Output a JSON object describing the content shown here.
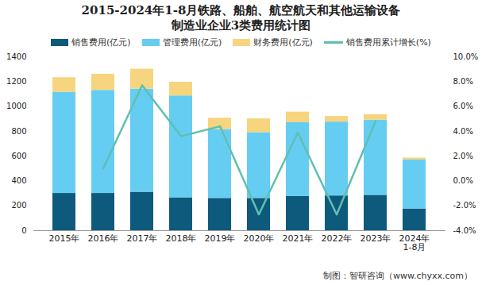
{
  "chart_data": {
    "type": "bar",
    "title": "2015-2024年1-8月铁路、船舶、航空航天和其他运输设备\n制造业企业3类费用统计图",
    "source": "制图：智研咨询（www.chyxx.com）",
    "categories": [
      "2015年",
      "2016年",
      "2017年",
      "2018年",
      "2019年",
      "2020年",
      "2021年",
      "2022年",
      "2023年",
      "2024年\n1-8月"
    ],
    "series": [
      {
        "name": "销售费用(亿元)",
        "color": "#0e5a7c",
        "type": "bar",
        "values": [
          300,
          300,
          310,
          265,
          260,
          260,
          275,
          280,
          285,
          175
        ]
      },
      {
        "name": "管理费用(亿元)",
        "color": "#66cdf2",
        "type": "bar",
        "values": [
          815,
          830,
          830,
          820,
          555,
          530,
          595,
          595,
          605,
          395
        ]
      },
      {
        "name": "财务费用(亿元)",
        "color": "#f7d47e",
        "type": "bar",
        "values": [
          117,
          130,
          160,
          110,
          90,
          110,
          85,
          45,
          45,
          15
        ]
      },
      {
        "name": "销售费用累计增长(%)",
        "color": "#5fbfb2",
        "type": "line",
        "axis": "y2",
        "values": [
          null,
          1.0,
          7.7,
          3.6,
          4.4,
          -2.7,
          3.9,
          -2.7,
          4.8,
          null
        ]
      }
    ],
    "stacked": true,
    "ylim": [
      0,
      1400
    ],
    "yticks": [
      0,
      200,
      400,
      600,
      800,
      1000,
      1200,
      1400
    ],
    "y2lim": [
      -4,
      10
    ],
    "y2ticks": [
      {
        "value": -4,
        "label": "-4.0%"
      },
      {
        "value": -2,
        "label": "-2.0%"
      },
      {
        "value": 0,
        "label": "0.0%"
      },
      {
        "value": 2,
        "label": "2.0%"
      },
      {
        "value": 4,
        "label": "4.0%"
      },
      {
        "value": 6,
        "label": "6.0%"
      },
      {
        "value": 8,
        "label": "8.0%"
      },
      {
        "value": 10,
        "label": "10.0%"
      }
    ],
    "grid": false,
    "legend": "top"
  }
}
